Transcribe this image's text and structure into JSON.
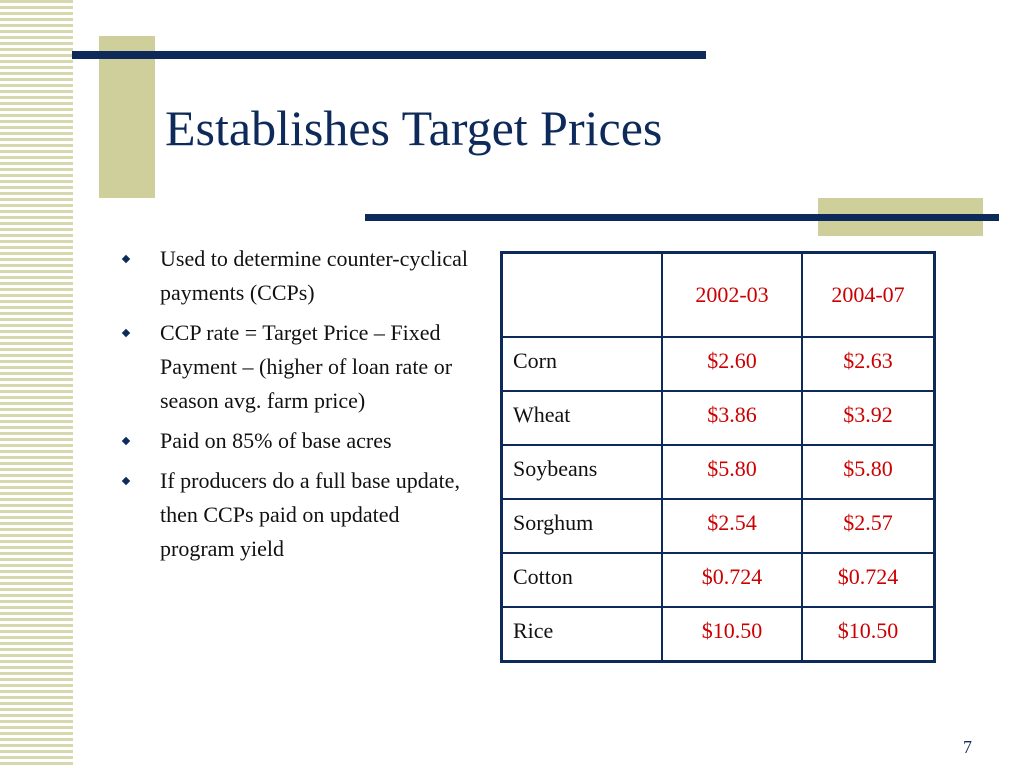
{
  "slide": {
    "title": "Establishes Target Prices",
    "page_number": "7"
  },
  "bullets": [
    "Used to determine counter-cyclical payments (CCPs)",
    "CCP rate = Target Price – Fixed Payment – (higher of loan rate or season avg. farm price)",
    "Paid on 85% of base acres",
    "If producers do a full base update, then CCPs paid on updated program yield"
  ],
  "table": {
    "headers": [
      "",
      "2002-03",
      "2004-07"
    ],
    "rows": [
      [
        "Corn",
        "$2.60",
        "$2.63"
      ],
      [
        "Wheat",
        "$3.86",
        "$3.92"
      ],
      [
        "Soybeans",
        "$5.80",
        "$5.80"
      ],
      [
        "Sorghum",
        "$2.54",
        "$2.57"
      ],
      [
        "Cotton",
        "$0.724",
        "$0.724"
      ],
      [
        "Rice",
        "$10.50",
        "$10.50"
      ]
    ]
  },
  "colors": {
    "navy": "#0e2a5a",
    "tan": "#cfcf9b",
    "stripe": "#d6d8ad",
    "red_values": "#cc0000"
  }
}
